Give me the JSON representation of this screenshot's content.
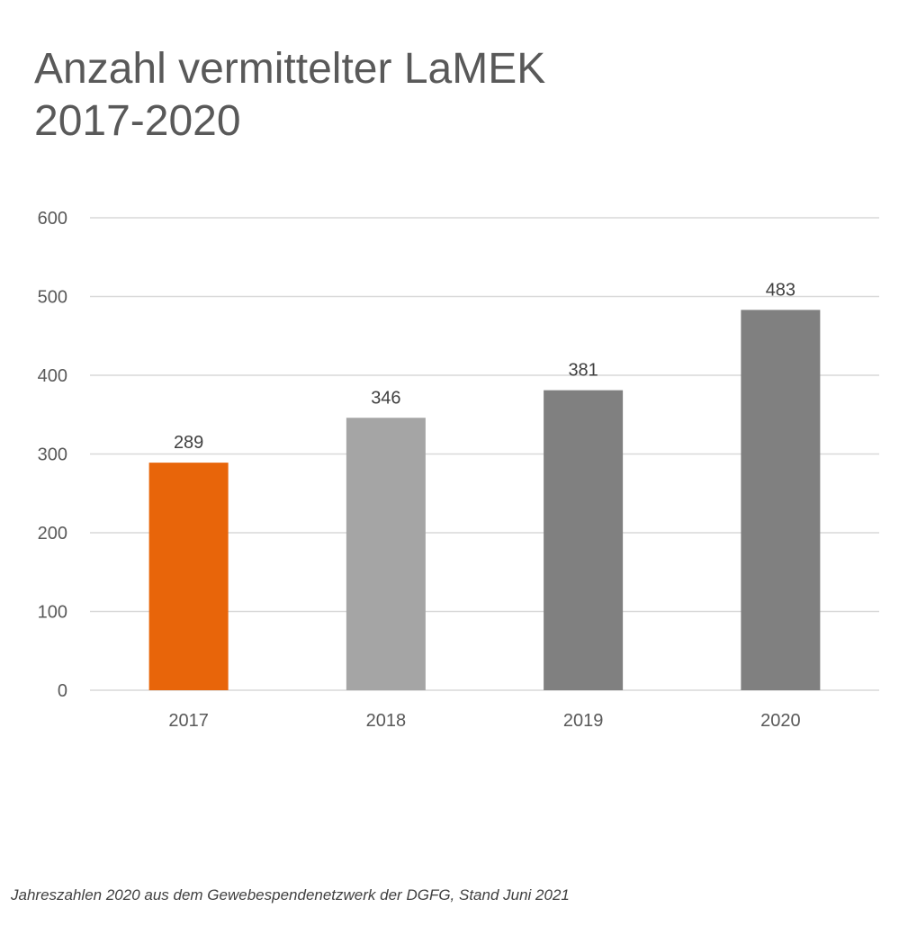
{
  "chart_data": {
    "type": "bar",
    "title_line1": "Anzahl vermittelter LaMEK",
    "title_line2": "2017-2020",
    "categories": [
      "2017",
      "2018",
      "2019",
      "2020"
    ],
    "values": [
      289,
      346,
      381,
      483
    ],
    "bar_colors": [
      "#E8650A",
      "#A5A5A5",
      "#808080",
      "#808080"
    ],
    "ylim": [
      0,
      600
    ],
    "yticks": [
      0,
      100,
      200,
      300,
      400,
      500,
      600
    ],
    "xlabel": "",
    "ylabel": "",
    "grid": true,
    "data_labels": true,
    "legend": "none"
  },
  "footnote": "Jahreszahlen 2020 aus dem Gewebespendenetzwerk der DGFG, Stand Juni 2021",
  "colors": {
    "title": "#595959",
    "axis_text": "#595959",
    "label_text": "#404040",
    "gridline": "#D9D9D9"
  }
}
